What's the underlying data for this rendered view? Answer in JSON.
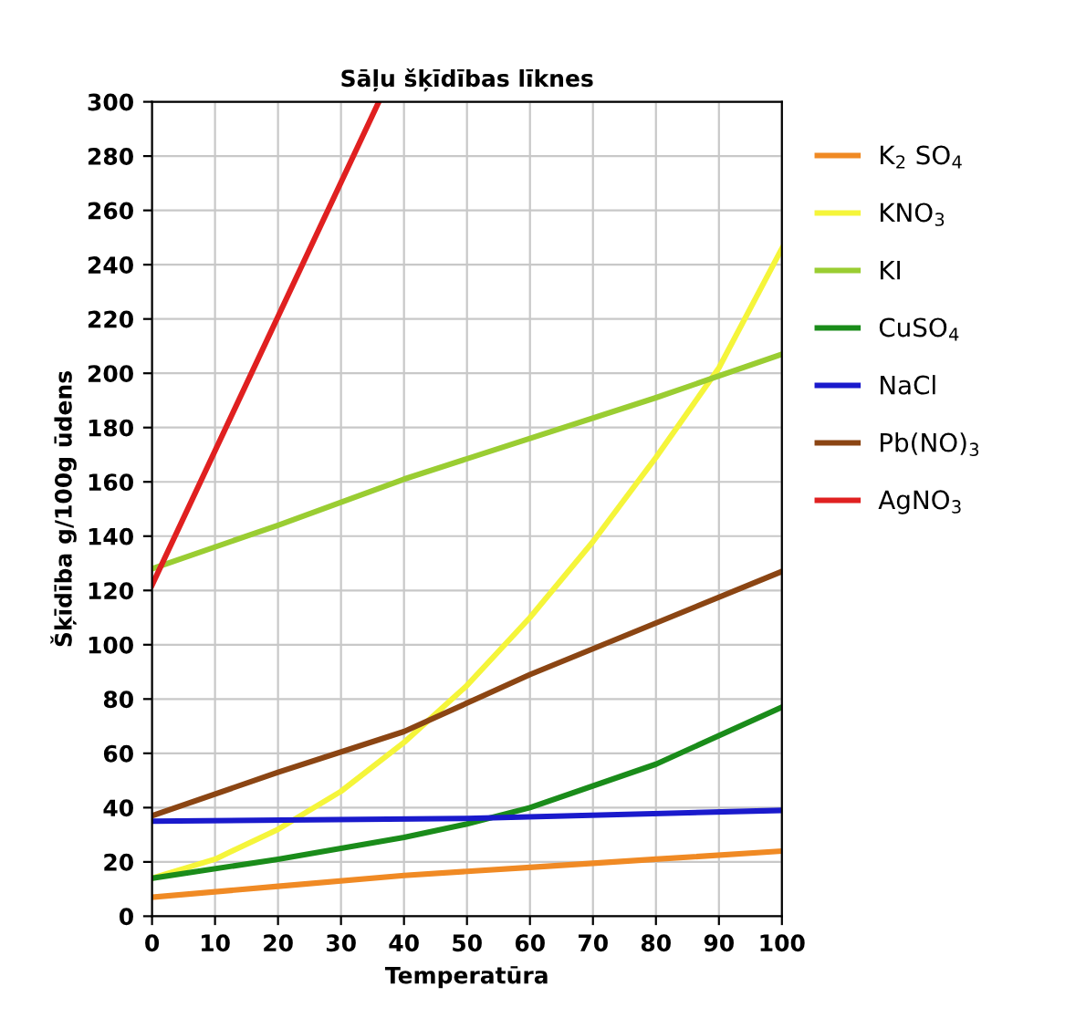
{
  "chart_data": {
    "type": "line",
    "title": "Sāļu šķīdības līknes",
    "xlabel": "Temperatūra",
    "ylabel": "Šķīdība g/100g ūdens",
    "xlim": [
      0,
      100
    ],
    "ylim": [
      0,
      300
    ],
    "xticks": [
      0,
      10,
      20,
      30,
      40,
      50,
      60,
      70,
      80,
      90,
      100
    ],
    "yticks": [
      0,
      20,
      40,
      60,
      80,
      100,
      120,
      140,
      160,
      180,
      200,
      220,
      240,
      260,
      280,
      300
    ],
    "grid": true,
    "legend": "right",
    "marker": "none",
    "line_style": "solid",
    "series": [
      {
        "name": "K$_{2}$ SO$_{4}$",
        "color": "#f08a24",
        "x": [
          0,
          20,
          40,
          60,
          80,
          100
        ],
        "values": [
          7,
          11,
          15,
          18,
          21,
          24
        ]
      },
      {
        "name": "KNO$_{3}$",
        "color": "#f5f53a",
        "x": [
          0,
          10,
          20,
          30,
          40,
          50,
          60,
          70,
          80,
          90,
          100
        ],
        "values": [
          14,
          21,
          32,
          46,
          64,
          85,
          110,
          138,
          169,
          202,
          246
        ]
      },
      {
        "name": "KI",
        "color": "#9acd32",
        "x": [
          0,
          20,
          40,
          60,
          80,
          100
        ],
        "values": [
          128,
          144,
          161,
          176,
          191,
          207
        ]
      },
      {
        "name": "CuSO$_{4}$",
        "color": "#1a8c1a",
        "x": [
          0,
          20,
          40,
          50,
          60,
          80,
          100
        ],
        "values": [
          14,
          21,
          29,
          34,
          40,
          56,
          77
        ]
      },
      {
        "name": "NaCl",
        "color": "#1a1acc",
        "x": [
          0,
          50,
          100
        ],
        "values": [
          35,
          36,
          39
        ]
      },
      {
        "name": "Pb(NO)$_{3}$",
        "color": "#8b4513",
        "x": [
          0,
          20,
          40,
          60,
          80,
          100
        ],
        "values": [
          37,
          53,
          68,
          89,
          108,
          127
        ]
      },
      {
        "name": "AgNO$_{3}$",
        "color": "#e02020",
        "x": [
          0,
          36
        ],
        "values": [
          122,
          300
        ]
      }
    ]
  }
}
